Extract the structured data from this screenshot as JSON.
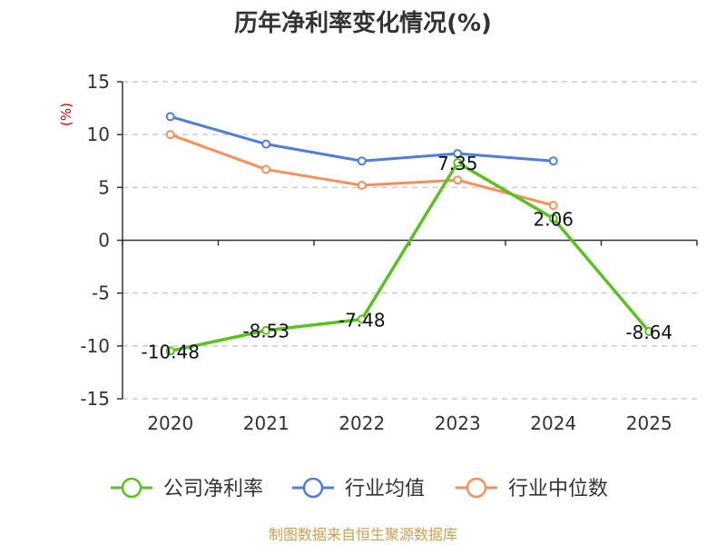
{
  "chart_data": {
    "type": "line",
    "title": "历年净利率变化情况(%)",
    "ylabel": "(%)",
    "categories": [
      "2020",
      "2021",
      "2022",
      "2023",
      "2024",
      "2025"
    ],
    "ylim": [
      -15,
      15
    ],
    "yticks": [
      15,
      10,
      5,
      0,
      -5,
      -10,
      -15
    ],
    "grid": true,
    "legend_position": "bottom",
    "series": [
      {
        "name": "公司净利率",
        "color": "#5ac21f",
        "values": [
          -10.48,
          -8.53,
          -7.48,
          7.35,
          2.06,
          -8.64
        ],
        "labels": [
          "-10.48",
          "-8.53",
          "-7.48",
          "7.35",
          "2.06",
          "-8.64"
        ]
      },
      {
        "name": "行业均值",
        "color": "#4d7fd9",
        "values": [
          11.7,
          9.1,
          7.5,
          8.2,
          7.5,
          null
        ]
      },
      {
        "name": "行业中位数",
        "color": "#f5905a",
        "values": [
          10.0,
          6.7,
          5.2,
          5.7,
          3.3,
          null
        ]
      }
    ],
    "source": "制图数据来自恒生聚源数据库"
  }
}
